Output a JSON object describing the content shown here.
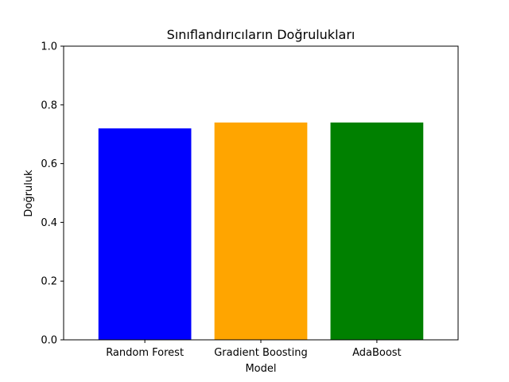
{
  "chart_data": {
    "type": "bar",
    "title": "Sınıflandırıcıların Doğrulukları",
    "xlabel": "Model",
    "ylabel": "Doğruluk",
    "categories": [
      "Random Forest",
      "Gradient Boosting",
      "AdaBoost"
    ],
    "values": [
      0.72,
      0.74,
      0.74
    ],
    "colors": [
      "#0000ff",
      "#ffa500",
      "#008000"
    ],
    "ylim": [
      0,
      1.0
    ],
    "yticks": [
      "0.0",
      "0.2",
      "0.4",
      "0.6",
      "0.8",
      "1.0"
    ],
    "grid": false,
    "legend": "none"
  }
}
